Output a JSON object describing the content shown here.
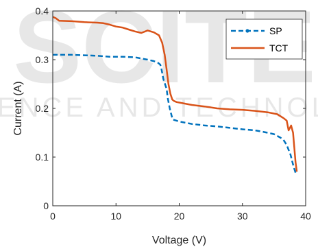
{
  "watermark": {
    "line1": "SCITE",
    "line2": "SCIENCE AND TECHNOLOGY"
  },
  "chart_data": {
    "type": "line",
    "xlabel": "Voltage (V)",
    "ylabel": "Current (A)",
    "xlim": [
      0,
      40
    ],
    "ylim": [
      0,
      0.4
    ],
    "xticks": [
      0,
      10,
      20,
      30,
      40
    ],
    "yticks": [
      0,
      0.1,
      0.2,
      0.3,
      0.4
    ],
    "xtick_labels": [
      "0",
      "10",
      "20",
      "30",
      "40"
    ],
    "ytick_labels": [
      "0",
      "0.1",
      "0.2",
      "0.3",
      "0.4"
    ],
    "grid": false,
    "legend_position": "top-right",
    "series": [
      {
        "name": "SP",
        "color": "#0072BD",
        "style": "dashed-with-marker",
        "x": [
          0,
          3,
          5,
          7,
          9,
          11,
          13,
          15,
          16,
          16.6,
          17,
          17.2,
          17.5,
          18,
          18.2,
          18.5,
          18.8,
          19,
          20,
          22,
          24,
          26,
          28,
          30,
          32,
          34,
          35,
          36,
          36.5,
          37,
          37.3,
          37.6,
          37.8,
          38.1,
          38.4
        ],
        "y": [
          0.31,
          0.31,
          0.309,
          0.308,
          0.306,
          0.306,
          0.305,
          0.3,
          0.297,
          0.294,
          0.29,
          0.28,
          0.26,
          0.24,
          0.22,
          0.2,
          0.185,
          0.177,
          0.173,
          0.168,
          0.165,
          0.163,
          0.16,
          0.157,
          0.155,
          0.15,
          0.147,
          0.14,
          0.135,
          0.125,
          0.115,
          0.105,
          0.095,
          0.08,
          0.068
        ]
      },
      {
        "name": "TCT",
        "color": "#D95319",
        "style": "solid",
        "x": [
          0,
          0.5,
          1,
          3,
          5,
          7,
          8,
          9,
          10,
          11,
          12,
          13,
          14,
          15,
          16,
          16.8,
          17.3,
          17.7,
          18,
          18.3,
          18.6,
          18.9,
          19.2,
          19.6,
          20,
          22,
          24,
          26,
          28,
          30,
          32,
          34,
          35.5,
          36.5,
          37,
          37.3,
          37.7,
          38,
          38.2,
          38.4,
          38.6
        ],
        "y": [
          0.388,
          0.385,
          0.38,
          0.379,
          0.377,
          0.376,
          0.375,
          0.372,
          0.368,
          0.366,
          0.362,
          0.358,
          0.355,
          0.36,
          0.356,
          0.35,
          0.335,
          0.31,
          0.28,
          0.25,
          0.23,
          0.218,
          0.215,
          0.213,
          0.212,
          0.207,
          0.204,
          0.2,
          0.198,
          0.197,
          0.195,
          0.192,
          0.188,
          0.18,
          0.175,
          0.155,
          0.165,
          0.15,
          0.12,
          0.09,
          0.07
        ]
      }
    ]
  }
}
